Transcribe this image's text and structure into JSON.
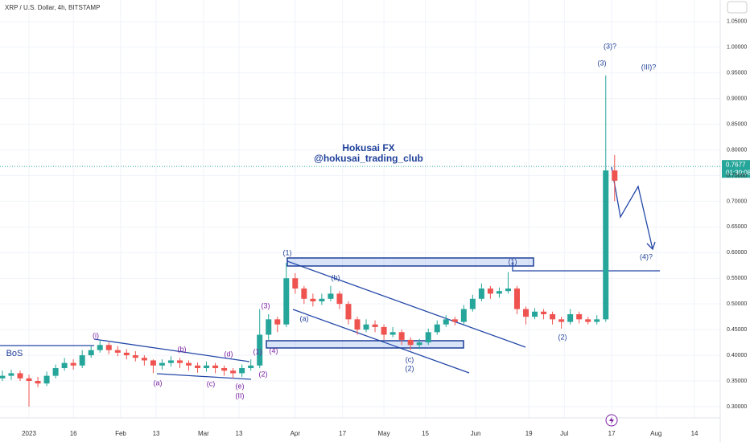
{
  "chart_data": {
    "type": "candlestick",
    "title": "XRP / U.S. Dollar, 4h, BITSTAMP",
    "x": [
      -9,
      -6,
      -3,
      0,
      3,
      6,
      9,
      12,
      15,
      18,
      21,
      24,
      27,
      30,
      33,
      36,
      39,
      42,
      45,
      48,
      51,
      54,
      57,
      60,
      63,
      66,
      69,
      72,
      75,
      78,
      81,
      84,
      87,
      90,
      93,
      96,
      99,
      102,
      105,
      108,
      111,
      114,
      117,
      120,
      123,
      126,
      129,
      132,
      135,
      138,
      141,
      144,
      147,
      150,
      153,
      156,
      159,
      162,
      165,
      168,
      171,
      174,
      177,
      180,
      183,
      186,
      189,
      192,
      195,
      198
    ],
    "open": [
      0.355,
      0.36,
      0.365,
      0.355,
      0.35,
      0.345,
      0.36,
      0.375,
      0.385,
      0.38,
      0.4,
      0.41,
      0.42,
      0.41,
      0.405,
      0.4,
      0.395,
      0.39,
      0.38,
      0.385,
      0.39,
      0.385,
      0.38,
      0.375,
      0.38,
      0.375,
      0.37,
      0.365,
      0.375,
      0.38,
      0.44,
      0.47,
      0.46,
      0.55,
      0.53,
      0.51,
      0.505,
      0.51,
      0.52,
      0.5,
      0.47,
      0.45,
      0.46,
      0.455,
      0.44,
      0.445,
      0.43,
      0.42,
      0.425,
      0.445,
      0.46,
      0.47,
      0.465,
      0.49,
      0.51,
      0.53,
      0.52,
      0.525,
      0.53,
      0.49,
      0.475,
      0.485,
      0.48,
      0.47,
      0.465,
      0.48,
      0.47,
      0.465,
      0.47,
      0.76
    ],
    "high": [
      0.37,
      0.372,
      0.37,
      0.362,
      0.358,
      0.368,
      0.382,
      0.395,
      0.392,
      0.41,
      0.418,
      0.43,
      0.425,
      0.418,
      0.412,
      0.408,
      0.4,
      0.392,
      0.392,
      0.398,
      0.395,
      0.39,
      0.386,
      0.388,
      0.385,
      0.38,
      0.375,
      0.382,
      0.392,
      0.49,
      0.48,
      0.475,
      0.58,
      0.56,
      0.535,
      0.52,
      0.52,
      0.535,
      0.525,
      0.505,
      0.475,
      0.47,
      0.468,
      0.46,
      0.455,
      0.45,
      0.435,
      0.432,
      0.452,
      0.468,
      0.478,
      0.475,
      0.498,
      0.518,
      0.54,
      0.535,
      0.532,
      0.562,
      0.535,
      0.495,
      0.492,
      0.49,
      0.485,
      0.475,
      0.49,
      0.485,
      0.475,
      0.478,
      0.945,
      0.79
    ],
    "low": [
      0.35,
      0.352,
      0.35,
      0.3,
      0.338,
      0.34,
      0.355,
      0.37,
      0.372,
      0.375,
      0.395,
      0.405,
      0.402,
      0.398,
      0.392,
      0.388,
      0.38,
      0.365,
      0.372,
      0.378,
      0.375,
      0.37,
      0.366,
      0.368,
      0.365,
      0.36,
      0.355,
      0.358,
      0.37,
      0.375,
      0.43,
      0.445,
      0.455,
      0.52,
      0.5,
      0.495,
      0.498,
      0.505,
      0.49,
      0.46,
      0.44,
      0.445,
      0.445,
      0.43,
      0.435,
      0.42,
      0.41,
      0.412,
      0.42,
      0.44,
      0.455,
      0.458,
      0.46,
      0.485,
      0.505,
      0.51,
      0.512,
      0.52,
      0.48,
      0.46,
      0.47,
      0.47,
      0.46,
      0.452,
      0.46,
      0.462,
      0.46,
      0.46,
      0.465,
      0.7
    ],
    "close": [
      0.36,
      0.365,
      0.355,
      0.35,
      0.345,
      0.36,
      0.375,
      0.385,
      0.38,
      0.4,
      0.41,
      0.42,
      0.41,
      0.405,
      0.4,
      0.395,
      0.39,
      0.38,
      0.385,
      0.39,
      0.385,
      0.38,
      0.375,
      0.38,
      0.375,
      0.37,
      0.365,
      0.375,
      0.38,
      0.44,
      0.47,
      0.46,
      0.55,
      0.53,
      0.51,
      0.505,
      0.51,
      0.52,
      0.5,
      0.47,
      0.45,
      0.46,
      0.455,
      0.44,
      0.445,
      0.43,
      0.42,
      0.425,
      0.445,
      0.46,
      0.47,
      0.465,
      0.49,
      0.51,
      0.53,
      0.52,
      0.525,
      0.53,
      0.49,
      0.475,
      0.485,
      0.48,
      0.47,
      0.465,
      0.48,
      0.47,
      0.465,
      0.47,
      0.76,
      0.74
    ],
    "up_color": "#26a69a",
    "down_color": "#ef5350",
    "xlim": [
      -9.8,
      233.7
    ],
    "xticks": [
      {
        "value": 0,
        "label": "2023"
      },
      {
        "value": 15,
        "label": "16"
      },
      {
        "value": 31,
        "label": "Feb"
      },
      {
        "value": 43,
        "label": "13"
      },
      {
        "value": 59,
        "label": "Mar"
      },
      {
        "value": 71,
        "label": "13"
      },
      {
        "value": 90,
        "label": "Apr"
      },
      {
        "value": 106,
        "label": "17"
      },
      {
        "value": 120,
        "label": "May"
      },
      {
        "value": 134,
        "label": "15"
      },
      {
        "value": 151,
        "label": "Jun"
      },
      {
        "value": 169,
        "label": "19"
      },
      {
        "value": 181,
        "label": "Jul"
      },
      {
        "value": 197,
        "label": "17"
      },
      {
        "value": 212,
        "label": "Aug"
      },
      {
        "value": 225,
        "label": "14"
      }
    ],
    "ylim": [
      0.278,
      1.092
    ],
    "yticks": [
      {
        "value": 0.3,
        "label": "0.30000"
      },
      {
        "value": 0.35,
        "label": "0.35000"
      },
      {
        "value": 0.4,
        "label": "0.40000"
      },
      {
        "value": 0.45,
        "label": "0.45000"
      },
      {
        "value": 0.5,
        "label": "0.50000"
      },
      {
        "value": 0.55,
        "label": "0.55000"
      },
      {
        "value": 0.6,
        "label": "0.60000"
      },
      {
        "value": 0.65,
        "label": "0.65000"
      },
      {
        "value": 0.7,
        "label": "0.70000"
      },
      {
        "value": 0.75,
        "label": "0.75000"
      },
      {
        "value": 0.8,
        "label": "0.80000"
      },
      {
        "value": 0.85,
        "label": "0.85000"
      },
      {
        "value": 0.9,
        "label": "0.90000"
      },
      {
        "value": 0.95,
        "label": "0.95000"
      },
      {
        "value": 1.0,
        "label": "1.00000"
      },
      {
        "value": 1.05,
        "label": "1.05000"
      }
    ],
    "last_price": {
      "value": 0.7677,
      "label": "0.7677",
      "countdown": "01:30:08"
    },
    "annotations": [
      "BoS",
      "(i)",
      "(b)",
      "(d)",
      "(a)",
      "(c)",
      "(e)",
      "(II)",
      "(1)",
      "(2)",
      "(3)",
      "(4)",
      "(1)",
      "(a)",
      "(b)",
      "(c)",
      "(2)",
      "(1)",
      "(2)",
      "(3)",
      "(3)?",
      "(III)?",
      "(4)?",
      "Hokusai FX",
      "@hokusai_trading_club"
    ]
  }
}
